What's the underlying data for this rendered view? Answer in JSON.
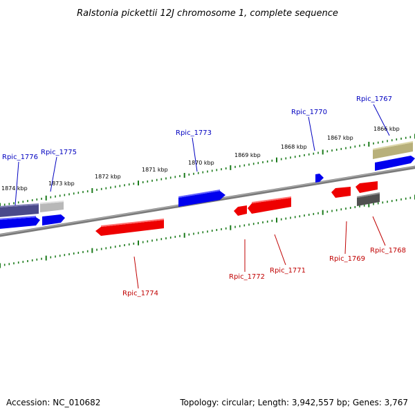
{
  "title": "Ralstonia pickettii 12J chromosome 1, complete sequence",
  "footer": {
    "accession": "Accession: NC_010682",
    "info": "Topology: circular; Length: 3,942,557 bp; Genes: 3,767"
  },
  "colors": {
    "forward": "#0000ff",
    "reverse": "#ff0000",
    "forward_label": "#0000c0",
    "reverse_label": "#c00000",
    "tick": "#1a7a1a",
    "backbone": "#808080",
    "gray_gene": "#bdbdbd",
    "dark_gene": "#505050",
    "navy_gene": "#4a4a8a",
    "olive_gene": "#b8b07a"
  },
  "scale_labels": [
    "1874 kbp",
    "1873 kbp",
    "1872 kbp",
    "1871 kbp",
    "1870 kbp",
    "1869 kbp",
    "1868 kbp",
    "1867 kbp",
    "1866 kbp"
  ],
  "forward_genes": [
    "Rpic_1776",
    "Rpic_1775",
    "Rpic_1773",
    "Rpic_1770",
    "Rpic_1767"
  ],
  "reverse_genes": [
    "Rpic_1774",
    "Rpic_1772",
    "Rpic_1771",
    "Rpic_1769",
    "Rpic_1768"
  ]
}
